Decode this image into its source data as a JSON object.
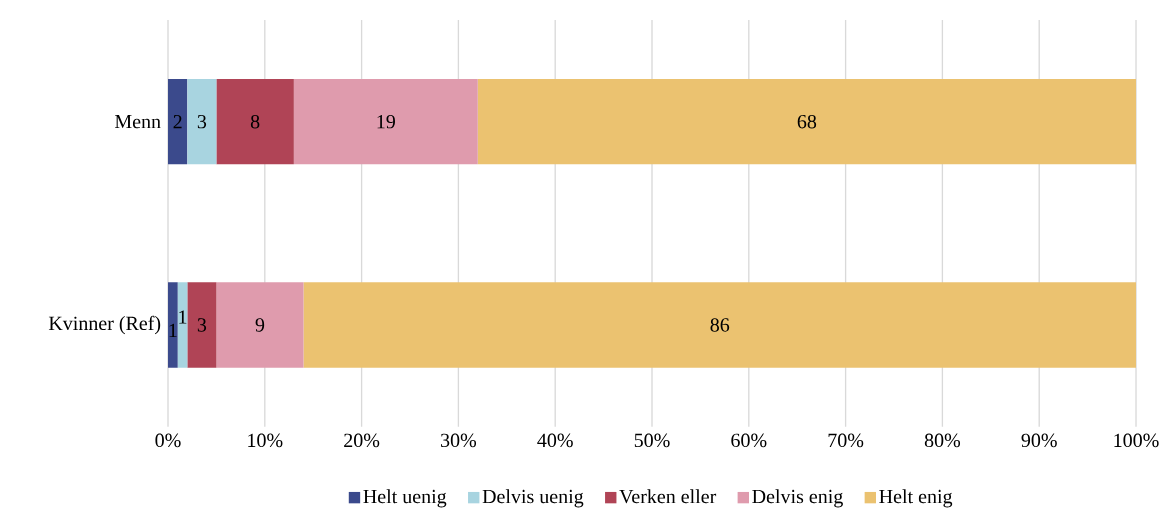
{
  "chart_data": {
    "type": "bar",
    "orientation": "horizontal",
    "stacked": true,
    "categories": [
      "Menn",
      "Kvinner (Ref)"
    ],
    "series": [
      {
        "name": "Helt uenig",
        "color": "#3b4a8c",
        "values": [
          2,
          1
        ]
      },
      {
        "name": "Delvis uenig",
        "color": "#a8d4e0",
        "values": [
          3,
          1
        ]
      },
      {
        "name": "Verken eller",
        "color": "#b04456",
        "values": [
          8,
          3
        ]
      },
      {
        "name": "Delvis enig",
        "color": "#df9bad",
        "values": [
          19,
          9
        ]
      },
      {
        "name": "Helt enig",
        "color": "#ebc270",
        "values": [
          68,
          86
        ]
      }
    ],
    "xlim": [
      0,
      100
    ],
    "xticks": [
      {
        "value": 0,
        "label": "0%"
      },
      {
        "value": 10,
        "label": "10%"
      },
      {
        "value": 20,
        "label": "20%"
      },
      {
        "value": 30,
        "label": "30%"
      },
      {
        "value": 40,
        "label": "40%"
      },
      {
        "value": 50,
        "label": "50%"
      },
      {
        "value": 60,
        "label": "60%"
      },
      {
        "value": 70,
        "label": "70%"
      },
      {
        "value": 80,
        "label": "80%"
      },
      {
        "value": 90,
        "label": "90%"
      },
      {
        "value": 100,
        "label": "100%"
      }
    ],
    "grid": "x",
    "legend": "bottom",
    "data_labels": true
  }
}
